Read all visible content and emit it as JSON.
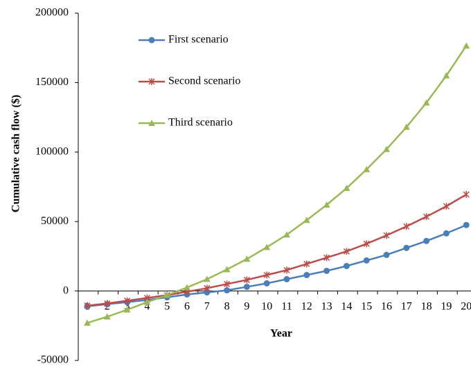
{
  "chart_data": {
    "type": "line",
    "x_label": "Year",
    "y_label": "Cumulative cash flow ($)",
    "categories": [
      "1",
      "2",
      "3",
      "4",
      "5",
      "6",
      "7",
      "8",
      "9",
      "10",
      "11",
      "12",
      "13",
      "14",
      "15",
      "16",
      "17",
      "18",
      "19",
      "20"
    ],
    "series": [
      {
        "name": "First scenario",
        "color": "#4a7ebb",
        "marker": "circle",
        "values": [
          -11000,
          -9500,
          -8000,
          -6500,
          -4500,
          -2500,
          -1000,
          500,
          3000,
          5500,
          8500,
          11500,
          14500,
          18000,
          22000,
          26000,
          31000,
          36000,
          41500,
          47500
        ]
      },
      {
        "name": "Second scenario",
        "color": "#be4b48",
        "marker": "star",
        "values": [
          -10500,
          -9000,
          -7000,
          -5000,
          -3000,
          -500,
          2000,
          5000,
          8000,
          11500,
          15000,
          19500,
          24000,
          28500,
          34000,
          40000,
          46500,
          53500,
          61000,
          69500
        ]
      },
      {
        "name": "Third scenario",
        "color": "#98b954",
        "marker": "triangle",
        "values": [
          -23000,
          -18500,
          -13500,
          -8000,
          -3000,
          2500,
          8500,
          15500,
          23000,
          31500,
          40500,
          51000,
          62000,
          74000,
          87500,
          102000,
          118000,
          135500,
          155000,
          176500
        ]
      }
    ],
    "ylim": [
      -50000,
      200000
    ],
    "yticks": [
      -50000,
      0,
      50000,
      100000,
      150000,
      200000
    ],
    "legend": "upper left"
  }
}
